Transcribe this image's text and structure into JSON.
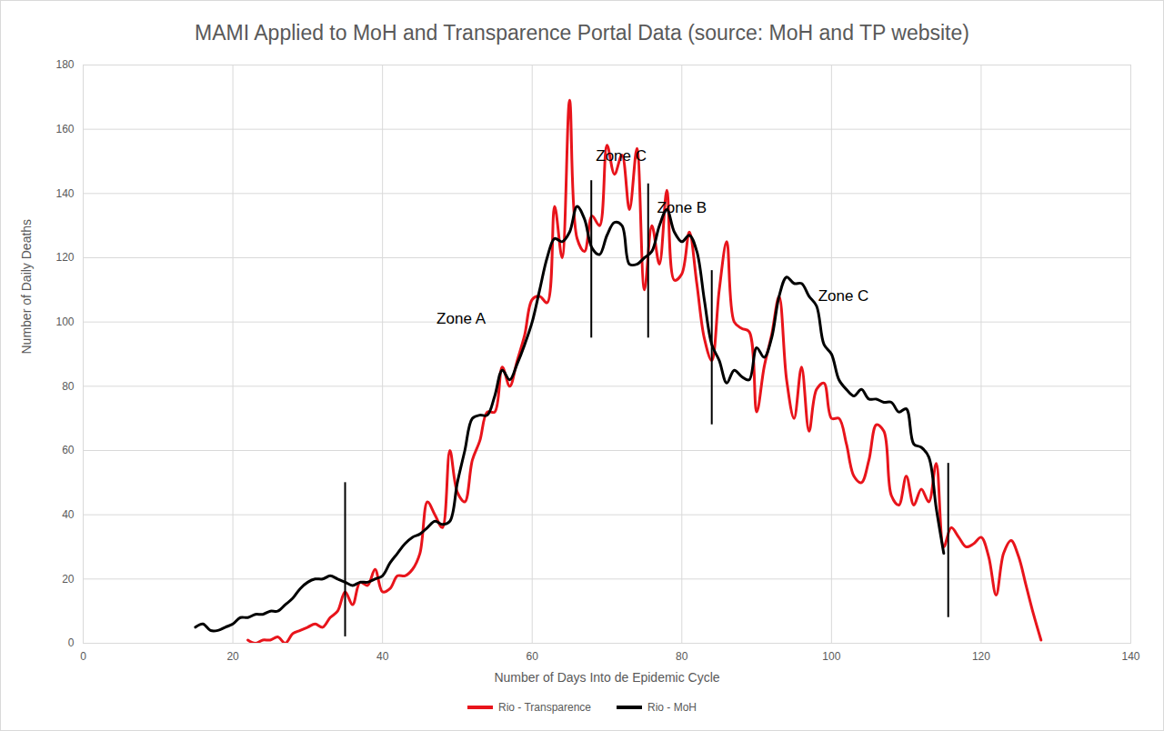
{
  "chart_data": {
    "type": "line",
    "title": "MAMI Applied to MoH and Transparence Portal Data (source: MoH and TP website)",
    "x_label": "Number of Days Into de Epidemic Cycle",
    "y_label": "Number of Daily Deaths",
    "x": [
      15,
      16,
      17,
      18,
      19,
      20,
      21,
      22,
      23,
      24,
      25,
      26,
      27,
      28,
      29,
      30,
      31,
      32,
      33,
      34,
      35,
      36,
      37,
      38,
      39,
      40,
      41,
      42,
      43,
      44,
      45,
      46,
      47,
      48,
      49,
      50,
      51,
      52,
      53,
      54,
      55,
      56,
      57,
      58,
      59,
      60,
      61,
      62,
      63,
      64,
      65,
      66,
      67,
      68,
      69,
      70,
      71,
      72,
      73,
      74,
      75,
      76,
      77,
      78,
      79,
      80,
      81,
      82,
      83,
      84,
      85,
      86,
      87,
      88,
      89,
      90,
      91,
      92,
      93,
      94,
      95,
      96,
      97,
      98,
      99,
      100,
      101,
      102,
      103,
      104,
      105,
      106,
      107,
      108,
      109,
      110,
      111,
      112,
      113,
      114,
      115,
      116,
      117,
      118,
      119,
      120,
      121,
      122,
      123,
      124,
      125,
      126,
      127,
      128
    ],
    "series": [
      {
        "name": "Rio - Transparence",
        "color": "#e8141b",
        "values": [
          null,
          null,
          null,
          null,
          null,
          null,
          null,
          1,
          0,
          1,
          1,
          2,
          0,
          3,
          4,
          5,
          6,
          5,
          8,
          10,
          16,
          12,
          19,
          18,
          23,
          16,
          17,
          21,
          21,
          23,
          28,
          44,
          40,
          36,
          60,
          47,
          44,
          57,
          63,
          72,
          72,
          86,
          80,
          88,
          96,
          107,
          108,
          106,
          136,
          120,
          169,
          126,
          122,
          133,
          130,
          155,
          146,
          152,
          135,
          154,
          110,
          130,
          118,
          141,
          113,
          115,
          128,
          112,
          95,
          88,
          110,
          125,
          100,
          98,
          97,
          72,
          86,
          96,
          108,
          82,
          70,
          86,
          66,
          79,
          81,
          70,
          70,
          62,
          52,
          50,
          57,
          68,
          66,
          46,
          43,
          52,
          43,
          48,
          44,
          56,
          30,
          36,
          33,
          30,
          31,
          33,
          27,
          15,
          28,
          32,
          27,
          18,
          9,
          1
        ]
      },
      {
        "name": "Rio - MoH",
        "color": "#000000",
        "values": [
          5,
          6,
          4,
          4,
          5,
          6,
          8,
          8,
          9,
          9,
          10,
          10,
          12,
          14,
          17,
          19,
          20,
          20,
          21,
          20,
          19,
          18,
          19,
          19,
          20,
          21,
          25,
          28,
          31,
          33,
          34,
          36,
          38,
          37,
          38,
          50,
          60,
          70,
          71,
          71,
          77,
          85,
          82,
          87,
          93,
          100,
          110,
          120,
          126,
          125,
          128,
          136,
          132,
          123,
          121,
          127,
          131,
          130,
          118,
          118,
          120,
          122,
          130,
          135,
          128,
          125,
          127,
          122,
          107,
          93,
          88,
          81,
          85,
          83,
          82,
          92,
          89,
          95,
          108,
          114,
          112,
          112,
          108,
          105,
          93,
          90,
          82,
          79,
          77,
          79,
          76,
          76,
          75,
          75,
          72,
          73,
          62,
          61,
          58,
          42,
          28,
          null,
          null,
          null,
          null,
          null,
          null,
          null,
          null,
          null,
          null,
          null,
          null,
          null
        ]
      }
    ],
    "annotations": [
      {
        "text": "Zone A",
        "x": 50.5,
        "y": 101
      },
      {
        "text": "Zone C",
        "x": 71.9,
        "y": 151.7
      },
      {
        "text": "Zone B",
        "x": 80,
        "y": 135.5
      },
      {
        "text": "Zone C",
        "x": 101.6,
        "y": 108
      }
    ],
    "zone_lines": [
      {
        "x": 35,
        "y1": 2,
        "y2": 50
      },
      {
        "x": 67.9,
        "y1": 95,
        "y2": 144
      },
      {
        "x": 75.5,
        "y1": 95,
        "y2": 143
      },
      {
        "x": 84,
        "y1": 68,
        "y2": 116
      },
      {
        "x": 115.6,
        "y1": 8,
        "y2": 56
      }
    ],
    "xlim": [
      0,
      140
    ],
    "xticks": [
      0,
      20,
      40,
      60,
      80,
      100,
      120,
      140
    ],
    "ylim": [
      0,
      180
    ],
    "yticks": [
      0,
      20,
      40,
      60,
      80,
      100,
      120,
      140,
      160,
      180
    ],
    "grid": true,
    "legend": "bottom"
  }
}
